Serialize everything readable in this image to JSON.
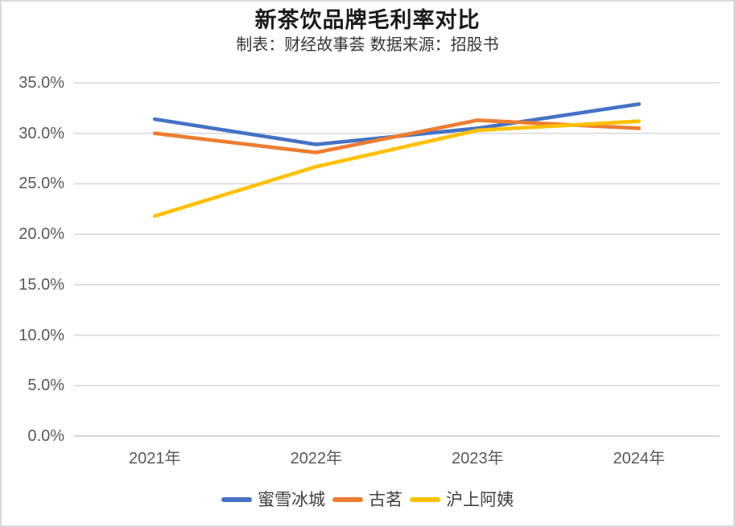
{
  "header": {
    "title": "新茶饮品牌毛利率对比",
    "subtitle": "制表：财经故事荟 数据来源：招股书"
  },
  "chart_data": {
    "type": "line",
    "title": "新茶饮品牌毛利率对比",
    "subtitle": "制表：财经故事荟 数据来源：招股书",
    "categories": [
      "2021年",
      "2022年",
      "2023年",
      "2024年"
    ],
    "series": [
      {
        "name": "蜜雪冰城",
        "color": "#4472C4",
        "values": [
          31.4,
          28.9,
          30.5,
          32.9
        ]
      },
      {
        "name": "古茗",
        "color": "#ED7D31",
        "values": [
          30.0,
          28.1,
          31.3,
          30.5
        ]
      },
      {
        "name": "沪上阿姨",
        "color": "#FFC000",
        "values": [
          21.8,
          26.7,
          30.3,
          31.2
        ]
      }
    ],
    "xlabel": "",
    "ylabel": "",
    "ylim": [
      0,
      35
    ],
    "ytick_values": [
      0,
      5,
      10,
      15,
      20,
      25,
      30,
      35
    ],
    "ytick_labels": [
      "0.0%",
      "5.0%",
      "10.0%",
      "15.0%",
      "20.0%",
      "25.0%",
      "30.0%",
      "35.0%"
    ],
    "grid": true,
    "legend_position": "bottom"
  },
  "colors": {
    "gridline": "#d9d9d9",
    "baseline": "#c6c6c6",
    "axis_text": "#595959",
    "frame_border": "#d9d9d9",
    "legend_text": "#404040"
  }
}
